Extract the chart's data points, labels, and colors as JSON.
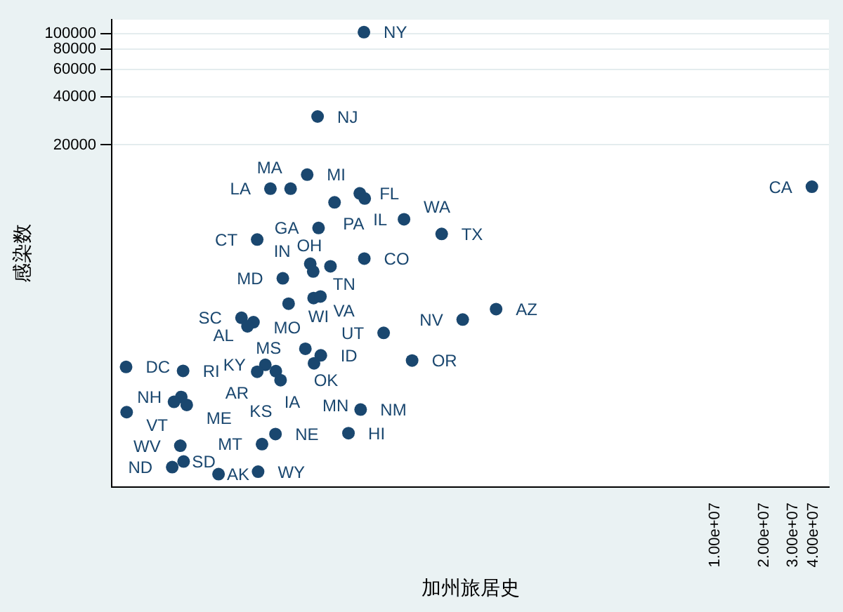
{
  "chart_data": {
    "type": "scatter",
    "xlabel": "加州旅居史",
    "ylabel": "感染数",
    "log": "xy",
    "grid": "y",
    "marker": "circle",
    "xlim": [
      2000,
      50000000
    ],
    "ylim": [
      140,
      123000
    ],
    "xticks": [
      {
        "value": 10000000,
        "label": "1.00e+07"
      },
      {
        "value": 20000000,
        "label": "2.00e+07"
      },
      {
        "value": 30000000,
        "label": "3.00e+07"
      },
      {
        "value": 40000000,
        "label": "4.00e+07"
      }
    ],
    "yticks": [
      20000,
      40000,
      60000,
      80000,
      100000
    ],
    "series": [
      {
        "color": "#1a476f",
        "x": [
          70400,
          36600,
          31600,
          18800,
          25000,
          66400,
          71200,
          46500,
          37100,
          124000,
          211000,
          15600,
          70800,
          33000,
          34400,
          43900,
          22400,
          24300,
          34600,
          38100,
          12500,
          14800,
          13600,
          455000,
          284000,
          93000,
          30800,
          38300,
          34800,
          139000,
          2450,
          5480,
          17500,
          15600,
          20300,
          21700,
          5340,
          4820,
          5770,
          2470,
          67200,
          20200,
          56600,
          16700,
          5270,
          5520,
          4700,
          9040,
          15800,
          39300000
        ],
        "values": [
          102600,
          30200,
          13000,
          10600,
          10600,
          9900,
          9200,
          8700,
          6000,
          6800,
          5500,
          5070,
          3850,
          3570,
          3190,
          3440,
          2890,
          2000,
          2170,
          2220,
          1630,
          1530,
          1440,
          1850,
          1590,
          1310,
          1040,
          946,
          842,
          877,
          800,
          755,
          824,
          746,
          752,
          660,
          517,
          482,
          461,
          415,
          431,
          302,
          306,
          261,
          255,
          203,
          187,
          169,
          175,
          10900
        ]
      }
    ],
    "annotations": [
      {
        "text": "NY",
        "x": 70400,
        "y": 102600
      },
      {
        "text": "NJ",
        "x": 36600,
        "y": 30200
      },
      {
        "text": "MI",
        "x": 31600,
        "y": 13000
      },
      {
        "text": "LA",
        "x": 18800,
        "y": 10600
      },
      {
        "text": "MA",
        "x": 25000,
        "y": 10600
      },
      {
        "text": "FL",
        "x": 66400,
        "y": 9900
      },
      {
        "text": "IL",
        "x": 71200,
        "y": 9200
      },
      {
        "text": "PA",
        "x": 46500,
        "y": 8700
      },
      {
        "text": "GA",
        "x": 37100,
        "y": 6000
      },
      {
        "text": "WA",
        "x": 124000,
        "y": 6800
      },
      {
        "text": "TX",
        "x": 211000,
        "y": 5500
      },
      {
        "text": "CT",
        "x": 15600,
        "y": 5070
      },
      {
        "text": "CO",
        "x": 70800,
        "y": 3850
      },
      {
        "text": "IN",
        "x": 33000,
        "y": 3570
      },
      {
        "text": "TN",
        "x": 34400,
        "y": 3190
      },
      {
        "text": "OH",
        "x": 43900,
        "y": 3440
      },
      {
        "text": "MD",
        "x": 22400,
        "y": 2890
      },
      {
        "text": "WI",
        "x": 24300,
        "y": 2000
      },
      {
        "text": "VA",
        "x": 34600,
        "y": 2170
      },
      {
        "text": "MO",
        "x": 38100,
        "y": 2220
      },
      {
        "text": "SC",
        "x": 12500,
        "y": 1630
      },
      {
        "text": "AL",
        "x": 14800,
        "y": 1530
      },
      {
        "text": "MS",
        "x": 13600,
        "y": 1440
      },
      {
        "text": "AZ",
        "x": 455000,
        "y": 1850
      },
      {
        "text": "NV",
        "x": 284000,
        "y": 1590
      },
      {
        "text": "UT",
        "x": 93000,
        "y": 1310
      },
      {
        "text": "OK",
        "x": 30800,
        "y": 1040
      },
      {
        "text": "ID",
        "x": 38300,
        "y": 946
      },
      {
        "text": "MN",
        "x": 34800,
        "y": 842
      },
      {
        "text": "OR",
        "x": 139000,
        "y": 877
      },
      {
        "text": "DC",
        "x": 2450,
        "y": 800
      },
      {
        "text": "RI",
        "x": 5480,
        "y": 755
      },
      {
        "text": "KY",
        "x": 17500,
        "y": 824
      },
      {
        "text": "AR",
        "x": 15600,
        "y": 746
      },
      {
        "text": "IA",
        "x": 20300,
        "y": 752
      },
      {
        "text": "KS",
        "x": 21700,
        "y": 660
      },
      {
        "text": "NH",
        "x": 5340,
        "y": 517
      },
      {
        "text": "ME",
        "x": 5770,
        "y": 461
      },
      {
        "text": "VT",
        "x": 2470,
        "y": 415
      },
      {
        "text": "NM",
        "x": 67200,
        "y": 431
      },
      {
        "text": "NE",
        "x": 20200,
        "y": 302
      },
      {
        "text": "HI",
        "x": 56600,
        "y": 306
      },
      {
        "text": "MT",
        "x": 16700,
        "y": 261
      },
      {
        "text": "WV",
        "x": 5270,
        "y": 255
      },
      {
        "text": "SD",
        "x": 5520,
        "y": 203
      },
      {
        "text": "ND",
        "x": 4700,
        "y": 187
      },
      {
        "text": "AK",
        "x": 9040,
        "y": 169
      },
      {
        "text": "WY",
        "x": 15800,
        "y": 175
      },
      {
        "text": "CA",
        "x": 39300000,
        "y": 10900
      }
    ]
  }
}
